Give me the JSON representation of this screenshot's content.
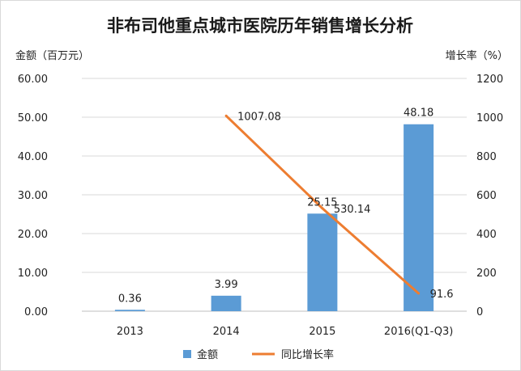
{
  "chart_data": {
    "type": "bar",
    "title": "非布司他重点城市医院历年销售增长分析",
    "categories": [
      "2013",
      "2014",
      "2015",
      "2016(Q1-Q3)"
    ],
    "ylabel": "金额（百万元）",
    "ylabel_right": "增长率（%）",
    "ylim": [
      0,
      60
    ],
    "ylim_right": [
      0,
      1200
    ],
    "yticks": [
      "0.00",
      "10.00",
      "20.00",
      "30.00",
      "40.00",
      "50.00",
      "60.00"
    ],
    "yticks_right": [
      "0",
      "200",
      "400",
      "600",
      "800",
      "1000",
      "1200"
    ],
    "grid": true,
    "legend_position": "bottom",
    "series": [
      {
        "name": "金额",
        "type": "bar",
        "axis": "left",
        "color": "#5b9bd5",
        "values": [
          0.36,
          3.99,
          25.15,
          48.18
        ],
        "labels": [
          "0.36",
          "3.99",
          "25.15",
          "48.18"
        ]
      },
      {
        "name": "同比增长率",
        "type": "line",
        "axis": "right",
        "color": "#ed7d31",
        "values": [
          null,
          1007.08,
          530.14,
          91.6
        ],
        "labels": [
          "",
          "1007.08",
          "530.14",
          "91.6"
        ]
      }
    ]
  }
}
